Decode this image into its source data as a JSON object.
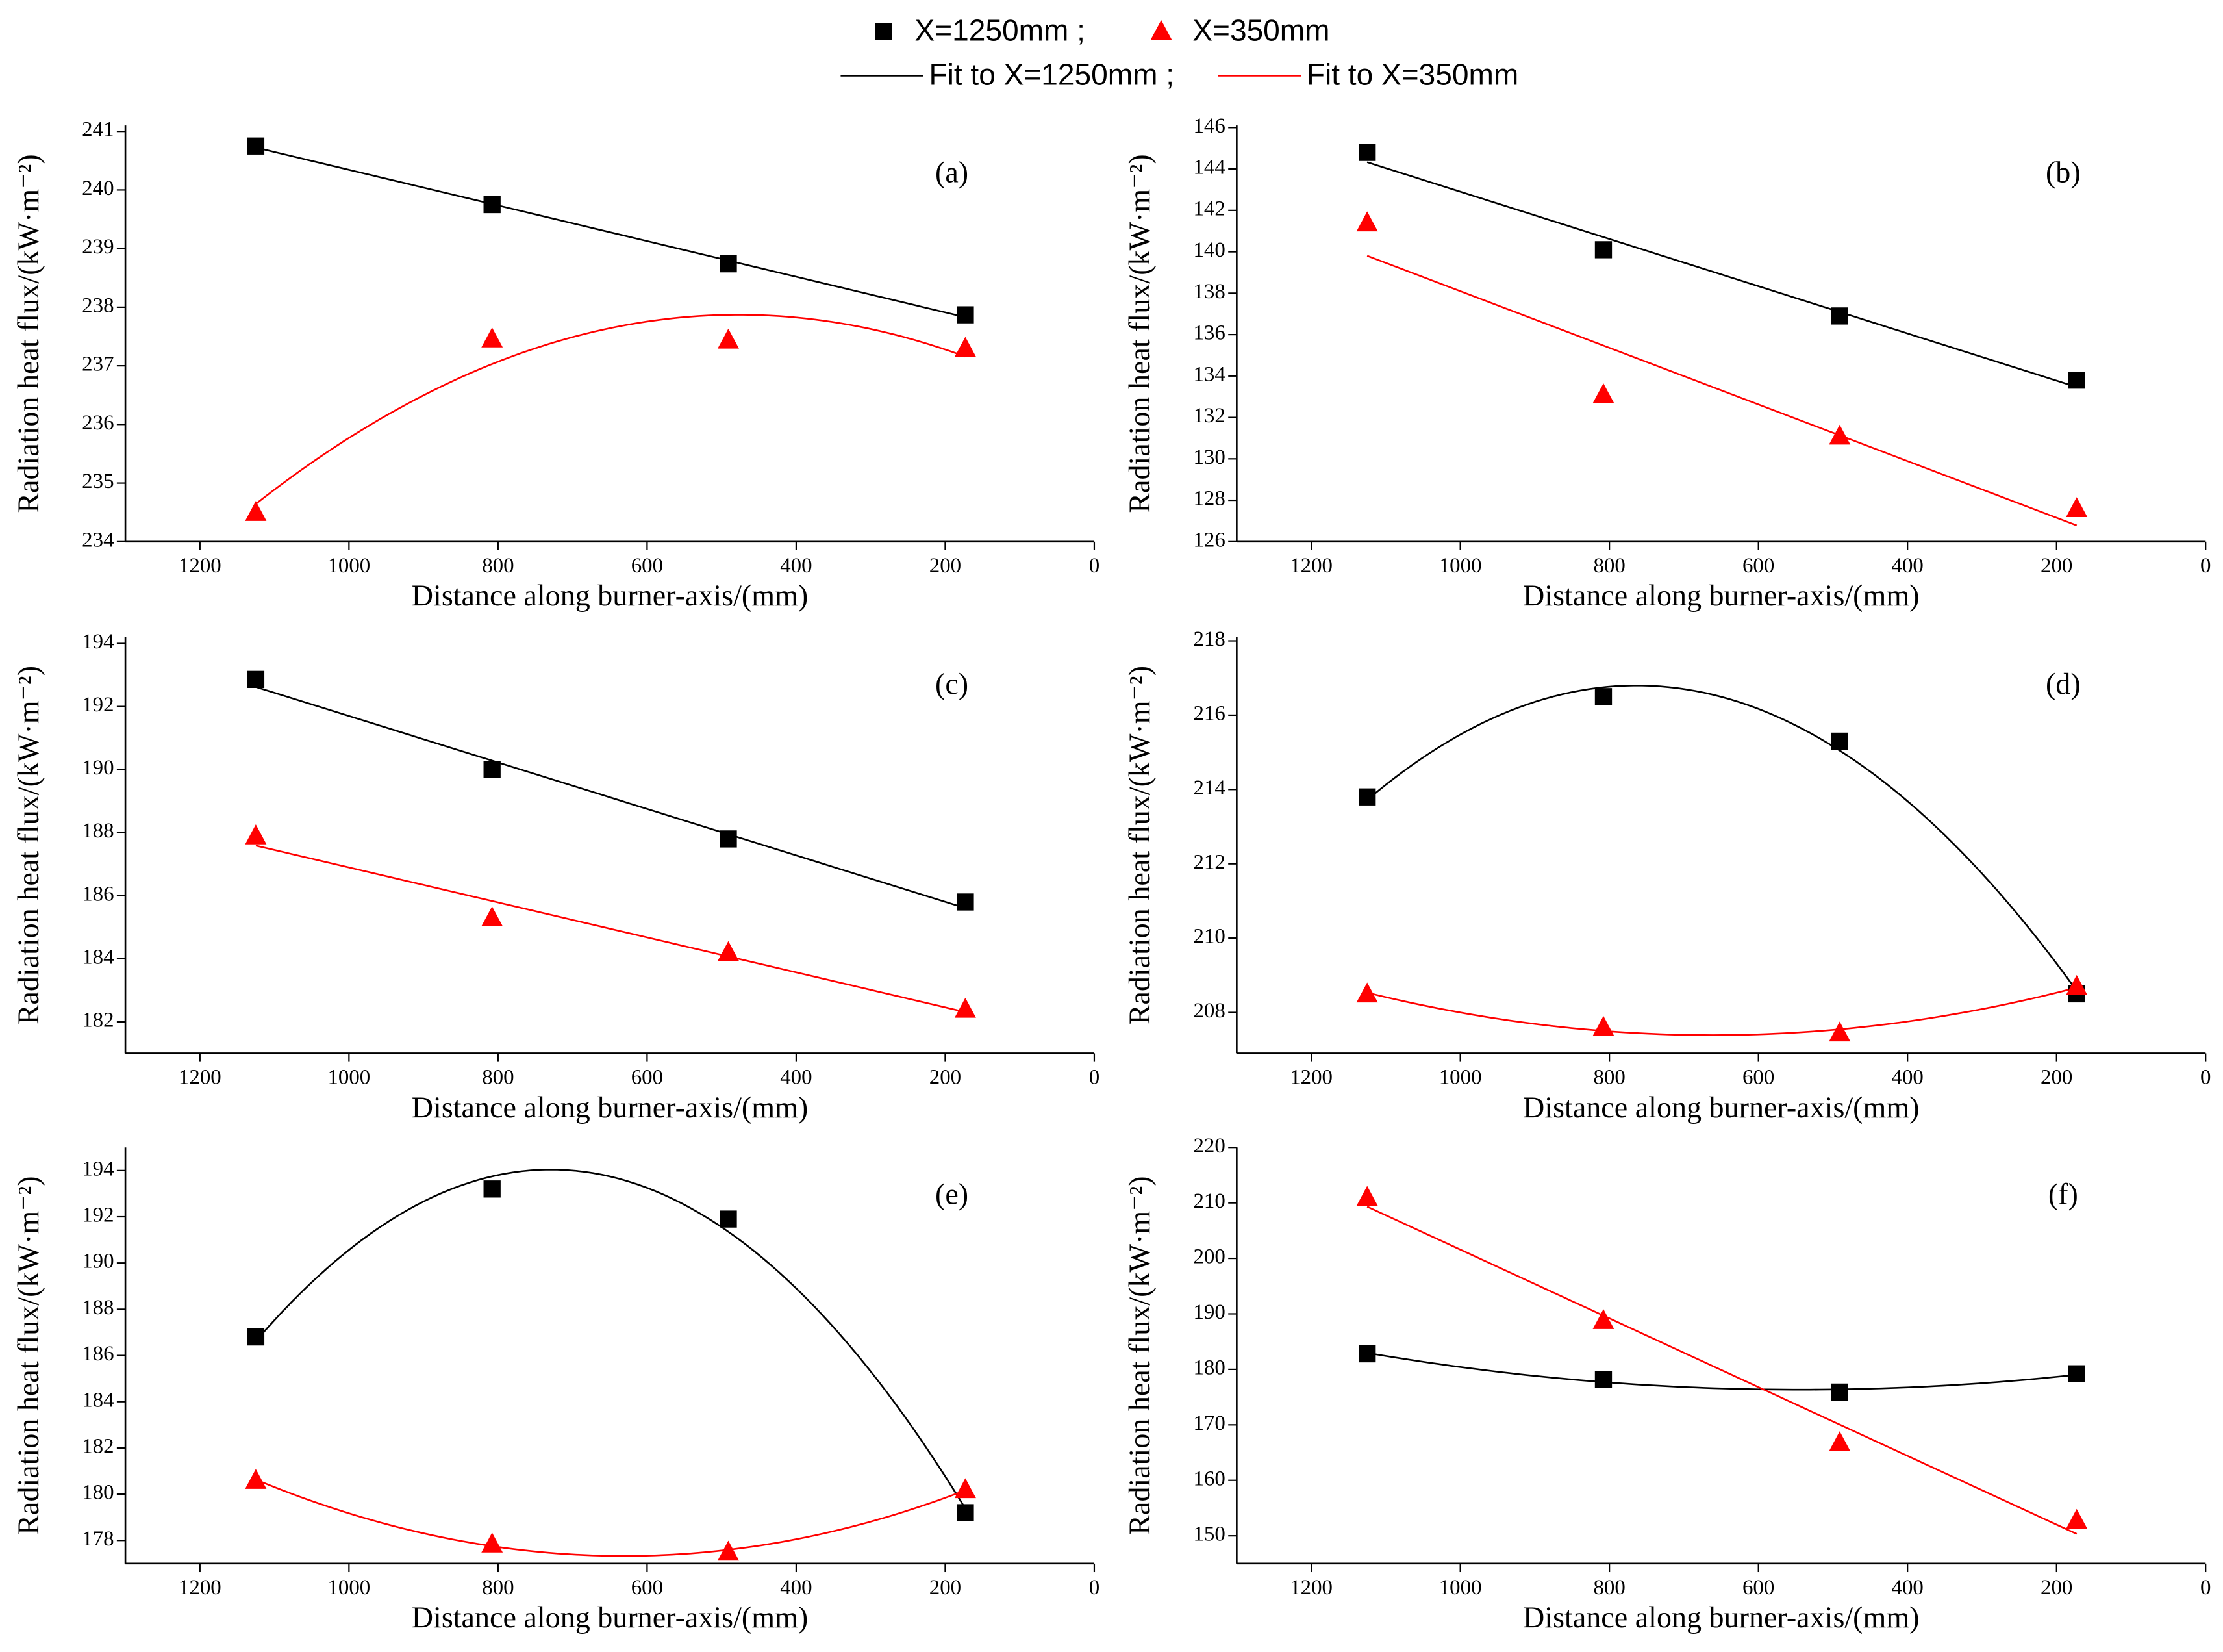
{
  "legend": [
    {
      "label": "X=1250mm ;",
      "kind": "marker",
      "marker": "square",
      "color": "#000000"
    },
    {
      "label": "X=350mm",
      "kind": "marker",
      "marker": "triangle",
      "color": "#ff0000"
    },
    {
      "label": "Fit to X=1250mm ;",
      "kind": "line",
      "color": "#000000"
    },
    {
      "label": "Fit to X=350mm",
      "kind": "line",
      "color": "#ff0000"
    }
  ],
  "chart_data": [
    {
      "type": "scatter",
      "panel_label": "(a)",
      "xlabel": "Distance along burner-axis/(mm)",
      "ylabel": "Radiation heat flux/(kW·m⁻²)",
      "x": [
        1125,
        808,
        491,
        173
      ],
      "xlim": [
        1300,
        0
      ],
      "xticks": [
        1200,
        1000,
        800,
        600,
        400,
        200,
        0
      ],
      "ylim": [
        234,
        241.1
      ],
      "yticks": [
        234,
        235,
        236,
        237,
        238,
        239,
        240,
        241
      ],
      "series": [
        {
          "color": "#000000",
          "marker": "square",
          "fit": "linear",
          "values": [
            240.75,
            239.75,
            238.74,
            237.87
          ]
        },
        {
          "color": "#ff0000",
          "marker": "triangle",
          "fit": "quadratic",
          "values": [
            234.5,
            237.46,
            237.44,
            237.3
          ]
        }
      ]
    },
    {
      "type": "scatter",
      "panel_label": "(b)",
      "xlabel": "Distance along burner-axis/(mm)",
      "ylabel": "Radiation heat flux/(kW·m⁻²)",
      "x": [
        1125,
        808,
        491,
        173
      ],
      "xlim": [
        1300,
        0
      ],
      "xticks": [
        1200,
        1000,
        800,
        600,
        400,
        200,
        0
      ],
      "ylim": [
        126,
        146.1
      ],
      "yticks": [
        126,
        128,
        130,
        132,
        134,
        136,
        138,
        140,
        142,
        144,
        146
      ],
      "series": [
        {
          "color": "#000000",
          "marker": "square",
          "fit": "linear",
          "values": [
            144.8,
            140.1,
            136.9,
            133.8
          ]
        },
        {
          "color": "#ff0000",
          "marker": "triangle",
          "fit": "linear",
          "values": [
            141.4,
            133.1,
            131.1,
            127.6
          ]
        }
      ]
    },
    {
      "type": "scatter",
      "panel_label": "(c)",
      "xlabel": "Distance along burner-axis/(mm)",
      "ylabel": "Radiation heat flux/(kW·m⁻²)",
      "x": [
        1125,
        808,
        491,
        173
      ],
      "xlim": [
        1300,
        0
      ],
      "xticks": [
        1200,
        1000,
        800,
        600,
        400,
        200,
        0
      ],
      "ylim": [
        181,
        194.2
      ],
      "yticks": [
        182,
        184,
        186,
        188,
        190,
        192,
        194
      ],
      "series": [
        {
          "color": "#000000",
          "marker": "square",
          "fit": "linear",
          "values": [
            192.86,
            190.0,
            187.8,
            185.8
          ]
        },
        {
          "color": "#ff0000",
          "marker": "triangle",
          "fit": "linear",
          "values": [
            187.9,
            185.3,
            184.2,
            182.4
          ]
        }
      ]
    },
    {
      "type": "scatter",
      "panel_label": "(d)",
      "xlabel": "Distance along burner-axis/(mm)",
      "ylabel": "Radiation heat flux/(kW·m⁻²)",
      "x": [
        1125,
        808,
        491,
        173
      ],
      "xlim": [
        1300,
        0
      ],
      "xticks": [
        1200,
        1000,
        800,
        600,
        400,
        200,
        0
      ],
      "ylim": [
        206.9,
        218.1
      ],
      "yticks": [
        208,
        210,
        212,
        214,
        216,
        218
      ],
      "series": [
        {
          "color": "#000000",
          "marker": "square",
          "fit": "quadratic",
          "values": [
            213.8,
            216.5,
            215.3,
            208.5
          ]
        },
        {
          "color": "#ff0000",
          "marker": "triangle",
          "fit": "quadratic",
          "values": [
            208.5,
            207.6,
            207.45,
            208.7
          ]
        }
      ]
    },
    {
      "type": "scatter",
      "panel_label": "(e)",
      "xlabel": "Distance along burner-axis/(mm)",
      "ylabel": "Radiation heat flux/(kW·m⁻²)",
      "x": [
        1125,
        808,
        491,
        173
      ],
      "xlim": [
        1300,
        0
      ],
      "xticks": [
        1200,
        1000,
        800,
        600,
        400,
        200,
        0
      ],
      "ylim": [
        177,
        195
      ],
      "yticks": [
        178,
        180,
        182,
        184,
        186,
        188,
        190,
        192,
        194
      ],
      "series": [
        {
          "color": "#000000",
          "marker": "square",
          "fit": "quadratic",
          "values": [
            186.8,
            193.2,
            191.9,
            179.2
          ]
        },
        {
          "color": "#ff0000",
          "marker": "triangle",
          "fit": "quadratic",
          "values": [
            180.6,
            177.85,
            177.5,
            180.2
          ]
        }
      ]
    },
    {
      "type": "scatter",
      "panel_label": "(f)",
      "xlabel": "Distance along burner-axis/(mm)",
      "ylabel": "Radiation heat flux/(kW·m⁻²)",
      "x": [
        1125,
        808,
        491,
        173
      ],
      "xlim": [
        1300,
        0
      ],
      "xticks": [
        1200,
        1000,
        800,
        600,
        400,
        200,
        0
      ],
      "ylim": [
        145,
        220
      ],
      "yticks": [
        150,
        160,
        170,
        180,
        190,
        200,
        210,
        220
      ],
      "series": [
        {
          "color": "#000000",
          "marker": "square",
          "fit": "quadratic",
          "values": [
            182.8,
            178.2,
            175.9,
            179.2
          ]
        },
        {
          "color": "#ff0000",
          "marker": "triangle",
          "fit": "linear",
          "values": [
            211.0,
            188.8,
            166.8,
            152.8
          ]
        }
      ]
    }
  ]
}
